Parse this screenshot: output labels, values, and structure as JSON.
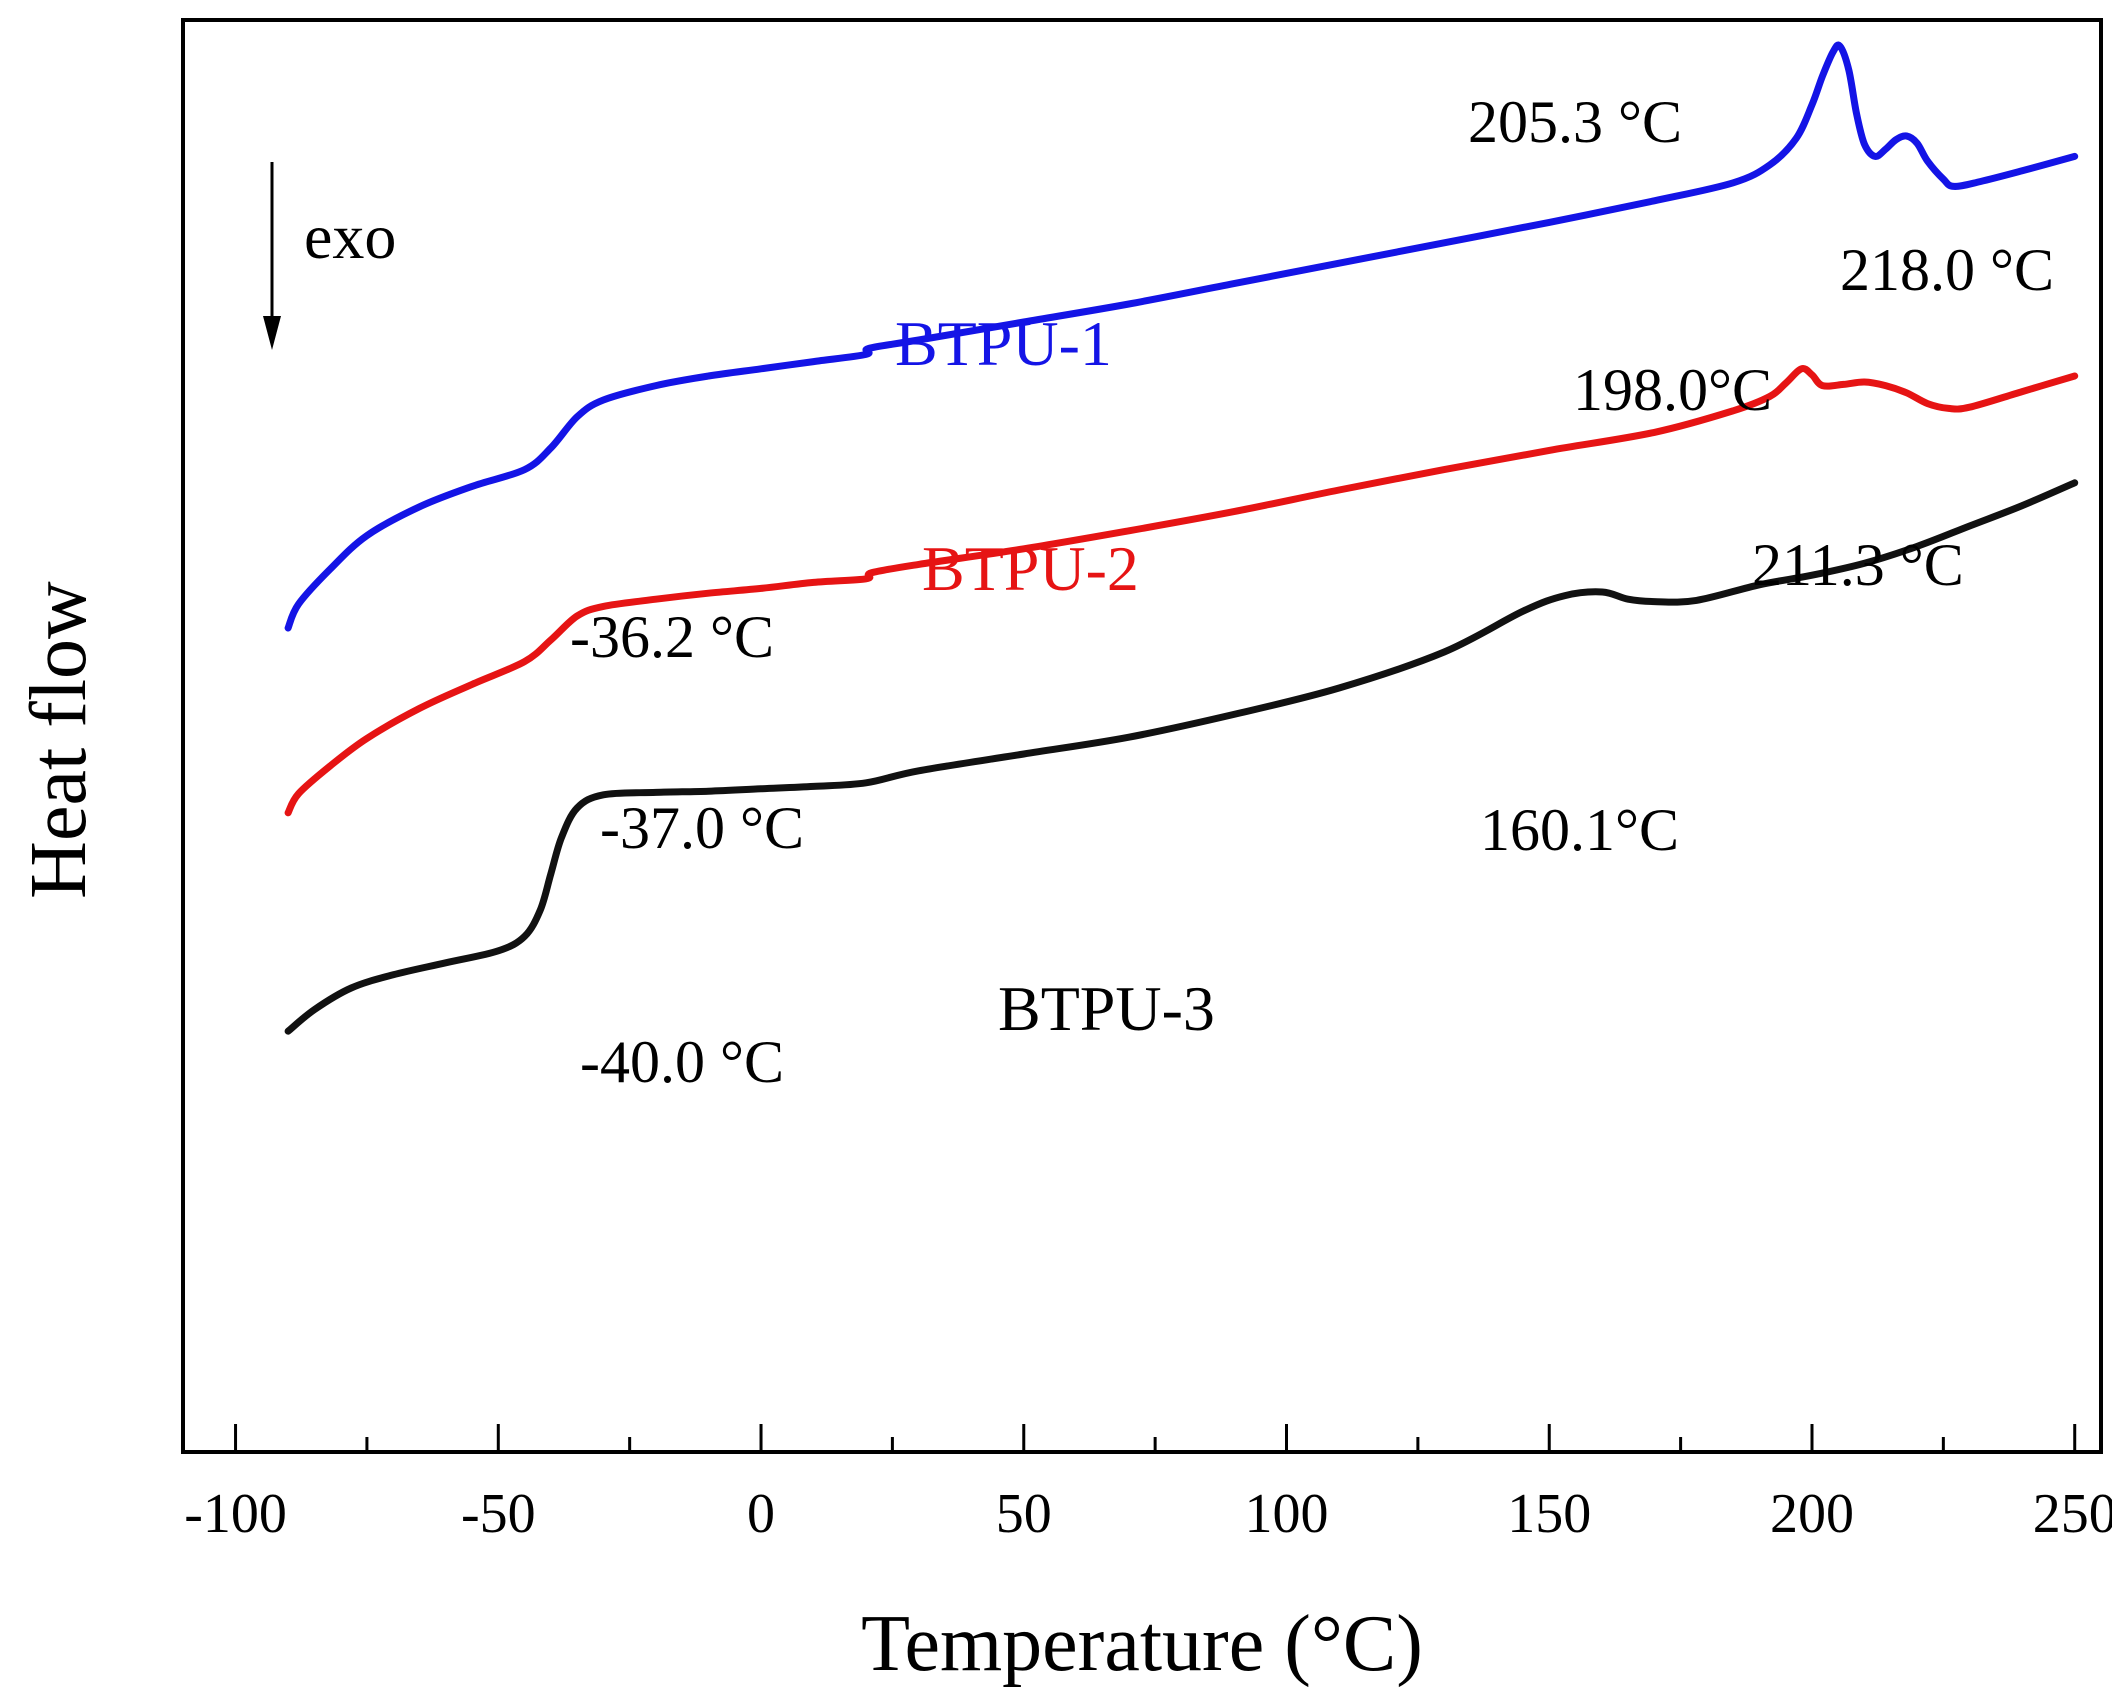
{
  "chart_data": {
    "type": "line",
    "title": "",
    "xlabel": "Temperature (°C)",
    "ylabel": "Heat flow",
    "xlim": [
      -110,
      255
    ],
    "ylim": [
      0,
      100
    ],
    "y_ticks_visible": false,
    "x_ticks": [
      -100,
      -50,
      0,
      50,
      100,
      150,
      200,
      250
    ],
    "x_tick_labels": [
      "-100",
      "-50",
      "0",
      "50",
      "100",
      "150",
      "200",
      "250"
    ],
    "x_minor_ticks": [
      -75,
      -25,
      25,
      75,
      125,
      175,
      225
    ],
    "direction_indicator": {
      "label": "exo",
      "direction": "down"
    },
    "series": [
      {
        "name": "BTPU-1",
        "color": "#1414e6",
        "points": [
          [
            -90,
            51.0
          ],
          [
            -88,
            53.0
          ],
          [
            -82,
            55.9
          ],
          [
            -75,
            58.7
          ],
          [
            -65,
            61.1
          ],
          [
            -55,
            62.8
          ],
          [
            -45,
            64.2
          ],
          [
            -40,
            66.0
          ],
          [
            -35,
            68.6
          ],
          [
            -30,
            70.0
          ],
          [
            -20,
            71.2
          ],
          [
            -10,
            72.0
          ],
          [
            0,
            72.6
          ],
          [
            10,
            73.2
          ],
          [
            20,
            73.8
          ],
          [
            20.5,
            74.3
          ],
          [
            30,
            75.0
          ],
          [
            50,
            76.5
          ],
          [
            70,
            78.0
          ],
          [
            90,
            79.7
          ],
          [
            110,
            81.4
          ],
          [
            130,
            83.1
          ],
          [
            150,
            84.8
          ],
          [
            170,
            86.6
          ],
          [
            185,
            88.1
          ],
          [
            192,
            89.6
          ],
          [
            197,
            91.8
          ],
          [
            200,
            94.6
          ],
          [
            202,
            97.0
          ],
          [
            204,
            99.0
          ],
          [
            205.3,
            99.5
          ],
          [
            207,
            97.5
          ],
          [
            208.5,
            93.8
          ],
          [
            210,
            91.3
          ],
          [
            212,
            90.3
          ],
          [
            214,
            90.9
          ],
          [
            216,
            91.7
          ],
          [
            218,
            92.0
          ],
          [
            220,
            91.4
          ],
          [
            222,
            89.9
          ],
          [
            225,
            88.4
          ],
          [
            227,
            87.8
          ],
          [
            232,
            88.2
          ],
          [
            240,
            89.1
          ],
          [
            250,
            90.3
          ]
        ]
      },
      {
        "name": "BTPU-2",
        "color": "#e61414",
        "points": [
          [
            -90,
            35.6
          ],
          [
            -88,
            37.2
          ],
          [
            -82,
            39.5
          ],
          [
            -75,
            41.8
          ],
          [
            -65,
            44.3
          ],
          [
            -55,
            46.3
          ],
          [
            -45,
            48.2
          ],
          [
            -40,
            50.0
          ],
          [
            -35,
            52.0
          ],
          [
            -30,
            52.8
          ],
          [
            -20,
            53.4
          ],
          [
            -10,
            53.9
          ],
          [
            0,
            54.3
          ],
          [
            10,
            54.8
          ],
          [
            20,
            55.1
          ],
          [
            21,
            55.6
          ],
          [
            30,
            56.3
          ],
          [
            50,
            57.6
          ],
          [
            70,
            59.1
          ],
          [
            90,
            60.7
          ],
          [
            110,
            62.5
          ],
          [
            130,
            64.2
          ],
          [
            150,
            65.8
          ],
          [
            170,
            67.3
          ],
          [
            185,
            69.1
          ],
          [
            192,
            70.3
          ],
          [
            195,
            71.4
          ],
          [
            198,
            72.6
          ],
          [
            200,
            72.1
          ],
          [
            202,
            71.2
          ],
          [
            206,
            71.3
          ],
          [
            210,
            71.5
          ],
          [
            214,
            71.2
          ],
          [
            218,
            70.6
          ],
          [
            222,
            69.7
          ],
          [
            226,
            69.3
          ],
          [
            230,
            69.4
          ],
          [
            240,
            70.7
          ],
          [
            250,
            72.0
          ]
        ]
      },
      {
        "name": "BTPU-3",
        "color": "#111111",
        "points": [
          [
            -90,
            17.4
          ],
          [
            -85,
            19.2
          ],
          [
            -78,
            21.0
          ],
          [
            -70,
            22.1
          ],
          [
            -60,
            23.1
          ],
          [
            -50,
            24.1
          ],
          [
            -45,
            25.3
          ],
          [
            -42,
            27.5
          ],
          [
            -40,
            30.5
          ],
          [
            -38,
            33.5
          ],
          [
            -35,
            36.0
          ],
          [
            -30,
            37.1
          ],
          [
            -20,
            37.3
          ],
          [
            -10,
            37.4
          ],
          [
            0,
            37.6
          ],
          [
            10,
            37.8
          ],
          [
            20,
            38.1
          ],
          [
            30,
            39.1
          ],
          [
            50,
            40.5
          ],
          [
            70,
            41.9
          ],
          [
            90,
            43.8
          ],
          [
            110,
            46.0
          ],
          [
            130,
            49.0
          ],
          [
            145,
            52.4
          ],
          [
            153,
            53.7
          ],
          [
            160.1,
            54.0
          ],
          [
            165,
            53.4
          ],
          [
            170,
            53.2
          ],
          [
            178,
            53.3
          ],
          [
            190,
            54.6
          ],
          [
            200,
            55.4
          ],
          [
            210,
            56.4
          ],
          [
            220,
            57.8
          ],
          [
            230,
            59.5
          ],
          [
            240,
            61.2
          ],
          [
            250,
            63.1
          ]
        ]
      }
    ],
    "annotations": {
      "btpu1_label": "BTPU-1",
      "btpu2_label": "BTPU-2",
      "btpu3_label": "BTPU-3",
      "btpu1_tg": "-36.2 °C",
      "btpu2_tg": "-37.0 °C",
      "btpu3_tg": "-40.0 °C",
      "btpu1_peak1": "205.3 °C",
      "btpu1_peak2": "218.0 °C",
      "btpu2_peak1": "198.0°C",
      "btpu2_peak2": "211.3 °C",
      "btpu3_peak": "160.1°C"
    }
  }
}
